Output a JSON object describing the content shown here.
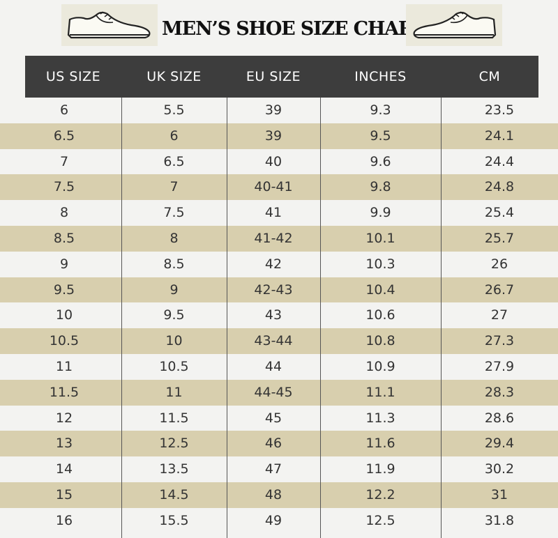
{
  "title": "MEN’S SHOE SIZE CHART",
  "icons": {
    "left": "shoe-icon",
    "right": "shoe-icon"
  },
  "colors": {
    "header_bg": "#3d3d3d",
    "stripe": "#d8cfae",
    "background": "#f3f3f1"
  },
  "table": {
    "headers": [
      "US SIZE",
      "UK SIZE",
      "EU SIZE",
      "INCHES",
      "CM"
    ],
    "rows": [
      [
        "6",
        "5.5",
        "39",
        "9.3",
        "23.5"
      ],
      [
        "6.5",
        "6",
        "39",
        "9.5",
        "24.1"
      ],
      [
        "7",
        "6.5",
        "40",
        "9.6",
        "24.4"
      ],
      [
        "7.5",
        "7",
        "40-41",
        "9.8",
        "24.8"
      ],
      [
        "8",
        "7.5",
        "41",
        "9.9",
        "25.4"
      ],
      [
        "8.5",
        "8",
        "41-42",
        "10.1",
        "25.7"
      ],
      [
        "9",
        "8.5",
        "42",
        "10.3",
        "26"
      ],
      [
        "9.5",
        "9",
        "42-43",
        "10.4",
        "26.7"
      ],
      [
        "10",
        "9.5",
        "43",
        "10.6",
        "27"
      ],
      [
        "10.5",
        "10",
        "43-44",
        "10.8",
        "27.3"
      ],
      [
        "11",
        "10.5",
        "44",
        "10.9",
        "27.9"
      ],
      [
        "11.5",
        "11",
        "44-45",
        "11.1",
        "28.3"
      ],
      [
        "12",
        "11.5",
        "45",
        "11.3",
        "28.6"
      ],
      [
        "13",
        "12.5",
        "46",
        "11.6",
        "29.4"
      ],
      [
        "14",
        "13.5",
        "47",
        "11.9",
        "30.2"
      ],
      [
        "15",
        "14.5",
        "48",
        "12.2",
        "31"
      ],
      [
        "16",
        "15.5",
        "49",
        "12.5",
        "31.8"
      ]
    ]
  }
}
